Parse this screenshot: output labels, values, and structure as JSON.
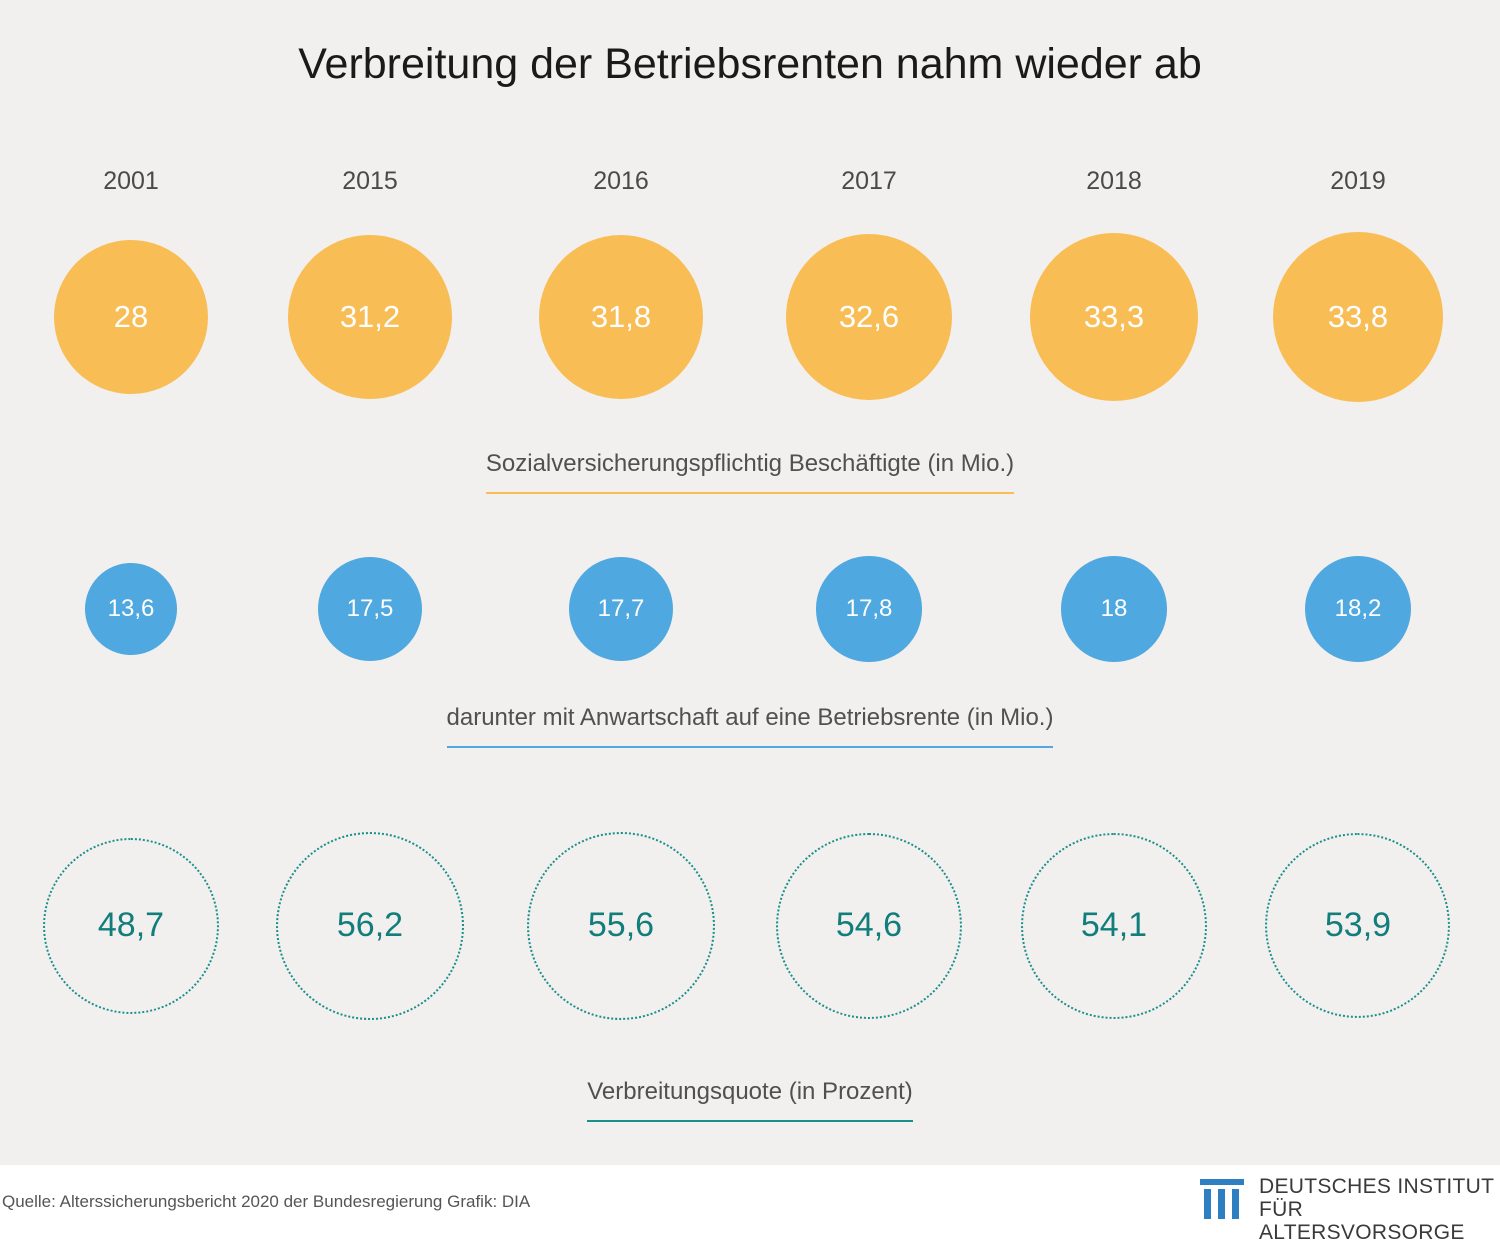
{
  "title": "Verbreitung der Betriebsrenten nahm wieder ab",
  "chart_data": {
    "type": "bubble",
    "categories": [
      "2001",
      "2015",
      "2016",
      "2017",
      "2018",
      "2019"
    ],
    "series": [
      {
        "name": "Sozialversicherungspflichtig Beschäftigte (in Mio.)",
        "values": [
          28,
          31.2,
          31.8,
          32.6,
          33.3,
          33.8
        ],
        "labels": [
          "28",
          "31,2",
          "31,8",
          "32,6",
          "33,3",
          "33,8"
        ],
        "color": "#f9bd55"
      },
      {
        "name": "darunter mit Anwartschaft auf eine Betriebsrente (in Mio.)",
        "values": [
          13.6,
          17.5,
          17.7,
          17.8,
          18,
          18.2
        ],
        "labels": [
          "13,6",
          "17,5",
          "17,7",
          "17,8",
          "18",
          "18,2"
        ],
        "color": "#4fa8df"
      },
      {
        "name": "Verbreitungsquote (in Prozent)",
        "values": [
          48.7,
          56.2,
          55.6,
          54.6,
          54.1,
          53.9
        ],
        "labels": [
          "48,7",
          "56,2",
          "55,6",
          "54,6",
          "54,1",
          "53,9"
        ],
        "color": "#1a8f8c"
      }
    ]
  },
  "footer": {
    "source": "Quelle: Alterssicherungsbericht 2020 der Bundesregierung    Grafik: DIA",
    "logo_line1": "DEUTSCHES INSTITUT",
    "logo_line2": "FÜR ALTERSVORSORGE",
    "logo_color": "#2d7fc1"
  }
}
